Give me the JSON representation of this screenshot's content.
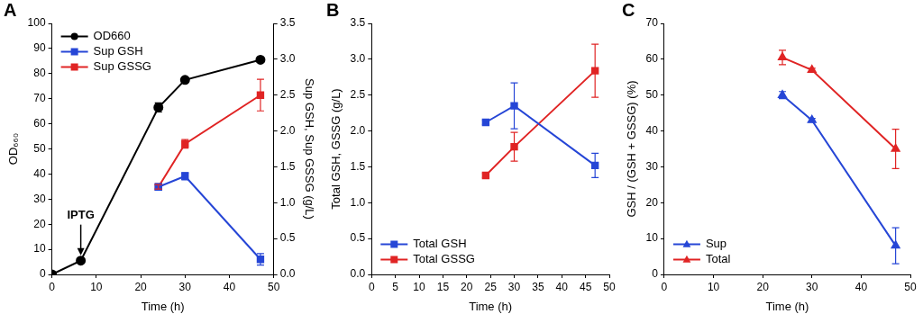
{
  "chart_data": [
    {
      "type": "line",
      "title": "A",
      "x_label": "Time (h)",
      "y_label": "OD₆₆₀",
      "y2_label": "Sup GSH, Sup GSSG (g/L)",
      "xlim": [
        0,
        50
      ],
      "xticks": [
        0,
        10,
        20,
        30,
        40,
        50
      ],
      "ylim": [
        0,
        100
      ],
      "yticks": [
        0,
        10,
        20,
        30,
        40,
        50,
        60,
        70,
        80,
        90,
        100
      ],
      "y2lim": [
        0,
        3.5
      ],
      "y2ticks": [
        {
          "value": 0,
          "label": "0.0"
        },
        {
          "value": 0.5,
          "label": "0.5"
        },
        {
          "value": 1,
          "label": "1.0"
        },
        {
          "value": 1.5,
          "label": "1.5"
        },
        {
          "value": 2,
          "label": "2.0"
        },
        {
          "value": 2.5,
          "label": "2.5"
        },
        {
          "value": 3,
          "label": "3.0"
        },
        {
          "value": 3.5,
          "label": "3.5"
        }
      ],
      "grid": false,
      "legend": "upper left",
      "annotations": [
        {
          "text": "IPTG",
          "x": 6.5,
          "y": 5.5
        }
      ],
      "series": [
        {
          "name": "OD660",
          "color": "#000000",
          "marker": "circle",
          "x": [
            0,
            6.5,
            24,
            30,
            47
          ],
          "values": [
            0,
            5.5,
            66.5,
            77.5,
            85.5
          ],
          "errors": [
            0,
            0,
            1.8,
            0.8,
            0.5
          ]
        },
        {
          "name": "Sup GSH",
          "color": "#2646d6",
          "marker": "square",
          "axis": "y2",
          "x": [
            24,
            30,
            47
          ],
          "values": [
            1.22,
            1.37,
            0.21
          ],
          "errors": [
            0.03,
            0.05,
            0.08
          ]
        },
        {
          "name": "Sup GSSG",
          "color": "#e02424",
          "marker": "square",
          "axis": "y2",
          "x": [
            24,
            30,
            47
          ],
          "values": [
            1.22,
            1.82,
            2.5
          ],
          "errors": [
            0.03,
            0.06,
            0.22
          ]
        }
      ]
    },
    {
      "type": "line",
      "title": "B",
      "x_label": "Time (h)",
      "y_label": "Total GSH, GSSG (g/L)",
      "xlim": [
        0,
        50
      ],
      "xticks": [
        0,
        5,
        10,
        15,
        20,
        25,
        30,
        35,
        40,
        45,
        50
      ],
      "ylim": [
        0,
        3.5
      ],
      "yticks": [
        {
          "value": 0,
          "label": "0.0"
        },
        {
          "value": 0.5,
          "label": "0.5"
        },
        {
          "value": 1,
          "label": "1.0"
        },
        {
          "value": 1.5,
          "label": "1.5"
        },
        {
          "value": 2,
          "label": "2.0"
        },
        {
          "value": 2.5,
          "label": "2.5"
        },
        {
          "value": 3,
          "label": "3.0"
        },
        {
          "value": 3.5,
          "label": "3.5"
        }
      ],
      "grid": false,
      "legend": "lower left",
      "series": [
        {
          "name": "Total GSH",
          "color": "#2646d6",
          "marker": "square",
          "x": [
            24,
            30,
            47
          ],
          "values": [
            2.12,
            2.35,
            1.52
          ],
          "errors": [
            0.03,
            0.32,
            0.17
          ]
        },
        {
          "name": "Total GSSG",
          "color": "#e02424",
          "marker": "square",
          "x": [
            24,
            30,
            47
          ],
          "values": [
            1.38,
            1.78,
            2.84
          ],
          "errors": [
            0.03,
            0.2,
            0.37
          ]
        }
      ]
    },
    {
      "type": "line",
      "title": "C",
      "x_label": "Time (h)",
      "y_label": "GSH / (GSH + GSSG) (%)",
      "xlim": [
        0,
        50
      ],
      "xticks": [
        0,
        10,
        20,
        30,
        40,
        50
      ],
      "ylim": [
        0,
        70
      ],
      "yticks": [
        0,
        10,
        20,
        30,
        40,
        50,
        60,
        70
      ],
      "grid": false,
      "legend": "lower left",
      "series": [
        {
          "name": "Sup",
          "color": "#2646d6",
          "marker": "triangle",
          "x": [
            24,
            30,
            47
          ],
          "values": [
            50,
            43,
            8
          ],
          "errors": [
            1,
            0.5,
            5
          ]
        },
        {
          "name": "Total",
          "color": "#e02424",
          "marker": "triangle",
          "x": [
            24,
            30,
            47
          ],
          "values": [
            60.5,
            57,
            35
          ],
          "errors": [
            2,
            0.5,
            5.5
          ]
        }
      ]
    }
  ]
}
